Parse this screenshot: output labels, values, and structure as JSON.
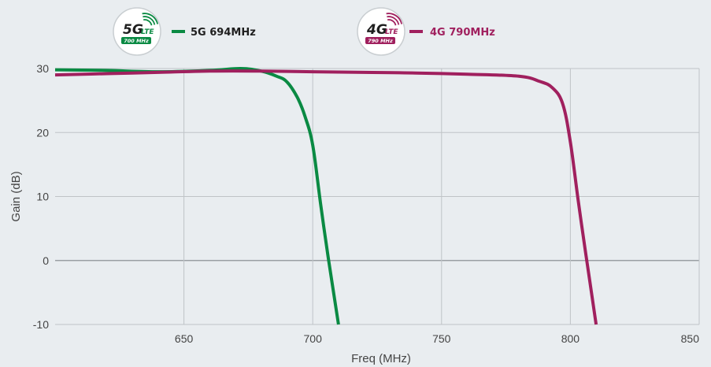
{
  "chart_data": {
    "type": "line",
    "title": "",
    "xlabel": "Freq (MHz)",
    "ylabel": "Gain (dB)",
    "xlim": [
      600,
      850
    ],
    "ylim": [
      -10,
      30
    ],
    "x_ticks": [
      {
        "value": 650,
        "label": "650"
      },
      {
        "value": 700,
        "label": "700"
      },
      {
        "value": 750,
        "label": "750"
      },
      {
        "value": 800,
        "label": "800"
      },
      {
        "value": 850,
        "label": "850"
      }
    ],
    "y_ticks": [
      {
        "value": 30,
        "label": "30"
      },
      {
        "value": 20,
        "label": "20"
      },
      {
        "value": 10,
        "label": "10"
      },
      {
        "value": 0,
        "label": "0"
      },
      {
        "value": -10,
        "label": "-10"
      }
    ],
    "grid": true,
    "legend_position": "top",
    "series": [
      {
        "name": "5G 694MHz",
        "color": "#0a8a43",
        "badge": {
          "main": "5G",
          "sub": "LTE",
          "band": "700 MHz"
        },
        "x": [
          600,
          620,
          640,
          660,
          672,
          680,
          686,
          690,
          694,
          697,
          700,
          703,
          706,
          710
        ],
        "y": [
          29.8,
          29.7,
          29.5,
          29.7,
          30.0,
          29.6,
          28.8,
          27.9,
          25.5,
          22.5,
          18.0,
          9.0,
          0.5,
          -10
        ]
      },
      {
        "name": "4G 790MHz",
        "color": "#a0205e",
        "badge": {
          "main": "4G",
          "sub": "LTE",
          "band": "790 MHz"
        },
        "x": [
          600,
          620,
          640,
          660,
          680,
          700,
          720,
          740,
          760,
          780,
          788,
          793,
          797,
          800,
          803,
          806,
          810
        ],
        "y": [
          29.0,
          29.2,
          29.4,
          29.6,
          29.6,
          29.5,
          29.4,
          29.3,
          29.1,
          28.8,
          28.0,
          27.0,
          24.5,
          18.5,
          9.5,
          1.0,
          -10
        ]
      }
    ]
  }
}
